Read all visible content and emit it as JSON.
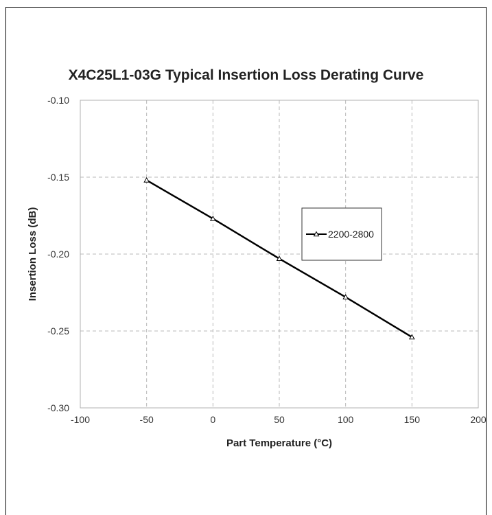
{
  "chart_data": {
    "type": "line",
    "title": "X4C25L1-03G Typical Insertion Loss Derating Curve",
    "xlabel": "Part Temperature (°C)",
    "ylabel": "Insertion Loss (dB)",
    "xlim": [
      -100,
      200
    ],
    "ylim": [
      -0.3,
      -0.1
    ],
    "x_ticks": [
      "-100",
      "-50",
      "0",
      "50",
      "100",
      "150",
      "200"
    ],
    "y_ticks": [
      "-0.10",
      "-0.15",
      "-0.20",
      "-0.25",
      "-0.30"
    ],
    "grid": true,
    "legend_position": "right-center",
    "series": [
      {
        "name": "2200-2800",
        "color": "#000000",
        "marker": "triangle",
        "x": [
          -50,
          0,
          50,
          100,
          150
        ],
        "y": [
          -0.152,
          -0.177,
          -0.203,
          -0.228,
          -0.254
        ]
      }
    ]
  }
}
